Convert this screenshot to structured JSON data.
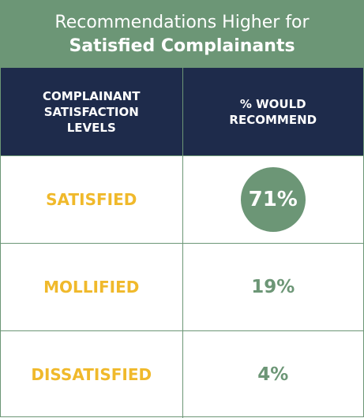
{
  "header": {
    "title_line1": "Recommendations Higher for",
    "title_line2": "Satisfied Complainants"
  },
  "table": {
    "columns": [
      "COMPLAINANT SATISFACTION LEVELS",
      "% WOULD RECOMMEND"
    ],
    "rows": [
      [
        "SATISFIED",
        "71%"
      ],
      [
        "MOLLIFIED",
        "19%"
      ],
      [
        "DISSATISFIED",
        "4%"
      ]
    ]
  }
}
